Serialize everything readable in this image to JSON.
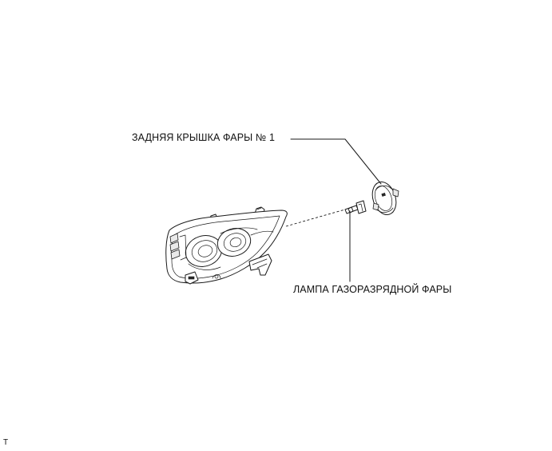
{
  "labels": {
    "rear_cover": "ЗАДНЯЯ КРЫШКА ФАРЫ № 1",
    "discharge_lamp": "ЛАМПА ГАЗОРАЗРЯДНОЙ ФАРЫ"
  },
  "corner_mark": "T"
}
